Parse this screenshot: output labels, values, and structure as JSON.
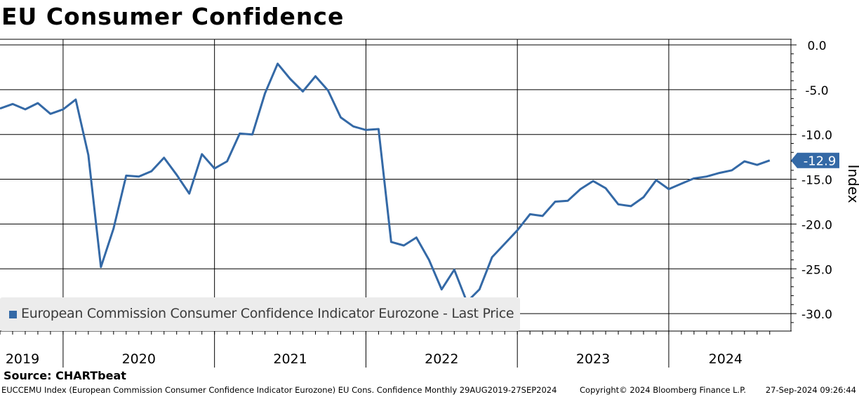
{
  "title": "EU Consumer Confidence",
  "source": "Source: CHARTbeat",
  "footer": {
    "description": "EUCCEMU Index (European Commission Consumer Confidence Indicator Eurozone) EU Cons. Confidence  Monthly 29AUG2019-27SEP2024",
    "copyright": "Copyright© 2024 Bloomberg Finance L.P.",
    "timestamp": "27-Sep-2024 09:26:44"
  },
  "colors": {
    "line": "#3469a6",
    "grid": "#000000",
    "legend_bg": "#ececec"
  },
  "chart_data": {
    "type": "line",
    "title": "EU Consumer Confidence",
    "ylabel": "Index",
    "ylim": [
      -32.5,
      1.0
    ],
    "yticks": [
      0,
      -5,
      -10,
      -15,
      -20,
      -25,
      -30
    ],
    "ytick_labels": [
      "0.0",
      "-5.0",
      "-10.0",
      "-15.0",
      "-20.0",
      "-25.0",
      "-30.0"
    ],
    "year_labels": [
      "2019",
      "2020",
      "2021",
      "2022",
      "2023",
      "2024"
    ],
    "year_boundaries": [
      "2020-01",
      "2021-01",
      "2022-01",
      "2023-01",
      "2024-01"
    ],
    "grid": true,
    "legend_position": "bottom-left",
    "last_value_label": "-12.9",
    "series": [
      {
        "name": "European Commission Consumer Confidence Indicator Eurozone - Last Price",
        "x": [
          "2019-08",
          "2019-09",
          "2019-10",
          "2019-11",
          "2019-12",
          "2020-01",
          "2020-02",
          "2020-03",
          "2020-04",
          "2020-05",
          "2020-06",
          "2020-07",
          "2020-08",
          "2020-09",
          "2020-10",
          "2020-11",
          "2020-12",
          "2021-01",
          "2021-02",
          "2021-03",
          "2021-04",
          "2021-05",
          "2021-06",
          "2021-07",
          "2021-08",
          "2021-09",
          "2021-10",
          "2021-11",
          "2021-12",
          "2022-01",
          "2022-02",
          "2022-03",
          "2022-04",
          "2022-05",
          "2022-06",
          "2022-07",
          "2022-08",
          "2022-09",
          "2022-10",
          "2022-11",
          "2022-12",
          "2023-01",
          "2023-02",
          "2023-03",
          "2023-04",
          "2023-05",
          "2023-06",
          "2023-07",
          "2023-08",
          "2023-09",
          "2023-10",
          "2023-11",
          "2023-12",
          "2024-01",
          "2024-02",
          "2024-03",
          "2024-04",
          "2024-05",
          "2024-06",
          "2024-07",
          "2024-08",
          "2024-09"
        ],
        "values": [
          -7.1,
          -6.6,
          -7.2,
          -6.5,
          -7.7,
          -7.2,
          -6.1,
          -12.3,
          -24.8,
          -20.5,
          -14.6,
          -14.7,
          -14.1,
          -12.6,
          -14.5,
          -16.6,
          -12.2,
          -13.8,
          -13.0,
          -9.9,
          -10.0,
          -5.4,
          -2.1,
          -3.8,
          -5.2,
          -3.5,
          -5.1,
          -8.1,
          -9.1,
          -9.5,
          -9.4,
          -22.0,
          -22.4,
          -21.5,
          -24.0,
          -27.3,
          -25.1,
          -28.7,
          -27.3,
          -23.7,
          -22.2,
          -20.7,
          -18.9,
          -19.1,
          -17.5,
          -17.4,
          -16.1,
          -15.2,
          -16.0,
          -17.8,
          -18.0,
          -17.0,
          -15.1,
          -16.1,
          -15.5,
          -14.9,
          -14.7,
          -14.3,
          -14.0,
          -13.0,
          -13.4,
          -12.9
        ]
      }
    ]
  }
}
